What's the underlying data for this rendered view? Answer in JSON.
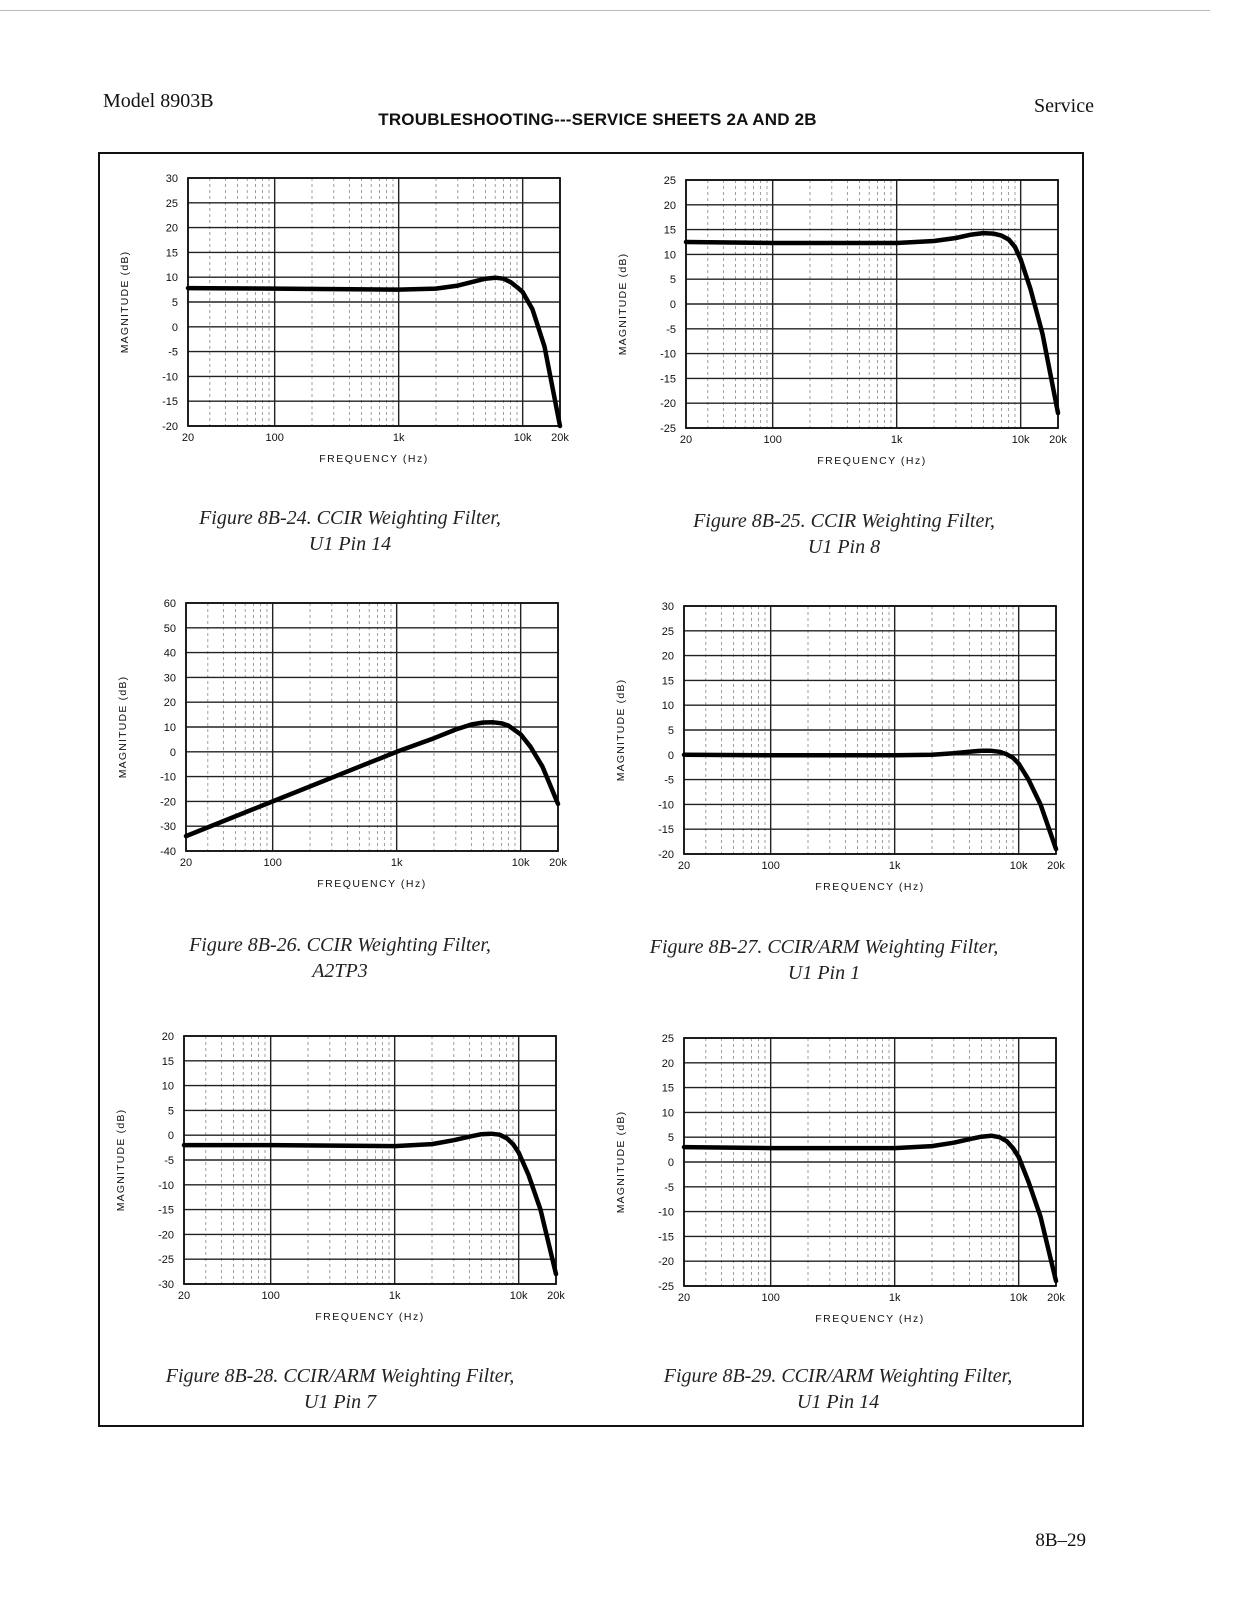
{
  "header": {
    "model": "Model 8903B",
    "title": "TROUBLESHOOTING---SERVICE SHEETS 2A AND 2B",
    "section": "Service"
  },
  "footer": {
    "page_number": "8B–29"
  },
  "captions": [
    {
      "line1": "Figure 8B-24. CCIR Weighting Filter,",
      "line2": "U1 Pin 14"
    },
    {
      "line1": "Figure 8B-25. CCIR Weighting Filter,",
      "line2": "U1 Pin 8"
    },
    {
      "line1": "Figure 8B-26. CCIR Weighting Filter,",
      "line2": "A2TP3"
    },
    {
      "line1": "Figure 8B-27. CCIR/ARM Weighting Filter,",
      "line2": "U1 Pin 1"
    },
    {
      "line1": "Figure 8B-28. CCIR/ARM Weighting Filter,",
      "line2": "U1 Pin 7"
    },
    {
      "line1": "Figure 8B-29. CCIR/ARM Weighting Filter,",
      "line2": "U1 Pin 14"
    }
  ],
  "chart_data": [
    {
      "type": "line",
      "title": "Figure 8B-24. CCIR Weighting Filter, U1 Pin 14",
      "xlabel": "FREQUENCY (Hz)",
      "ylabel": "MAGNITUDE (dB)",
      "xscale": "log",
      "xlim": [
        20,
        20000
      ],
      "x_ticks": [
        20,
        100,
        1000,
        10000,
        20000
      ],
      "x_tick_labels": [
        "20",
        "100",
        "1k",
        "10k",
        "20k"
      ],
      "ylim": [
        -20,
        30
      ],
      "y_ticks": [
        30,
        25,
        20,
        15,
        10,
        5,
        0,
        -5,
        -10,
        -15,
        -20
      ],
      "y_tick_labels": [
        "30",
        "25",
        "20",
        "15",
        "10",
        "5",
        "0",
        "-5",
        "-10",
        "-15",
        "-20"
      ],
      "series": [
        {
          "name": "response",
          "x": [
            20,
            100,
            1000,
            2000,
            3000,
            4000,
            5000,
            6000,
            7000,
            8000,
            9000,
            10000,
            12000,
            15000,
            20000
          ],
          "y": [
            7.8,
            7.7,
            7.5,
            7.7,
            8.3,
            9.1,
            9.7,
            9.9,
            9.7,
            9.0,
            8.0,
            7.0,
            3.5,
            -4.0,
            -20
          ]
        }
      ]
    },
    {
      "type": "line",
      "title": "Figure 8B-25. CCIR Weighting Filter, U1 Pin 8",
      "xlabel": "FREQUENCY (Hz)",
      "ylabel": "MAGNITUDE (dB)",
      "xscale": "log",
      "xlim": [
        20,
        20000
      ],
      "x_ticks": [
        20,
        100,
        1000,
        10000,
        20000
      ],
      "x_tick_labels": [
        "20",
        "100",
        "1k",
        "10k",
        "20k"
      ],
      "ylim": [
        -25,
        25
      ],
      "y_ticks": [
        25,
        20,
        15,
        10,
        5,
        0,
        -5,
        -10,
        -15,
        -20,
        -25
      ],
      "y_tick_labels": [
        "25",
        "20",
        "15",
        "10",
        "5",
        "0",
        "-5",
        "-10",
        "-15",
        "-20",
        "-25"
      ],
      "series": [
        {
          "name": "response",
          "x": [
            20,
            100,
            1000,
            2000,
            3000,
            4000,
            5000,
            6000,
            7000,
            8000,
            9000,
            10000,
            12000,
            15000,
            20000
          ],
          "y": [
            12.5,
            12.3,
            12.3,
            12.7,
            13.3,
            14.0,
            14.3,
            14.2,
            13.8,
            13.0,
            11.5,
            9.0,
            3.0,
            -6.0,
            -22
          ]
        }
      ]
    },
    {
      "type": "line",
      "title": "Figure 8B-26. CCIR Weighting Filter, A2TP3",
      "xlabel": "FREQUENCY (Hz)",
      "ylabel": "MAGNITUDE (dB)",
      "xscale": "log",
      "xlim": [
        20,
        20000
      ],
      "x_ticks": [
        20,
        100,
        1000,
        10000,
        20000
      ],
      "x_tick_labels": [
        "20",
        "100",
        "1k",
        "10k",
        "20k"
      ],
      "ylim": [
        -40,
        60
      ],
      "y_ticks": [
        60,
        50,
        40,
        30,
        20,
        10,
        0,
        -10,
        -20,
        -30,
        -40
      ],
      "y_tick_labels": [
        "60",
        "50",
        "40",
        "30",
        "20",
        "10",
        "0",
        "-10",
        "-20",
        "-30",
        "-40"
      ],
      "series": [
        {
          "name": "response",
          "x": [
            20,
            100,
            500,
            1000,
            2000,
            3000,
            4000,
            5000,
            6000,
            7000,
            8000,
            10000,
            12000,
            15000,
            20000
          ],
          "y": [
            -34,
            -20,
            -6,
            0,
            5.5,
            9.0,
            11.0,
            11.8,
            11.9,
            11.5,
            10.5,
            7.0,
            2.0,
            -6.0,
            -21
          ]
        }
      ]
    },
    {
      "type": "line",
      "title": "Figure 8B-27. CCIR/ARM Weighting Filter, U1 Pin 1",
      "xlabel": "FREQUENCY (Hz)",
      "ylabel": "MAGNITUDE (dB)",
      "xscale": "log",
      "xlim": [
        20,
        20000
      ],
      "x_ticks": [
        20,
        100,
        1000,
        10000,
        20000
      ],
      "x_tick_labels": [
        "20",
        "100",
        "1k",
        "10k",
        "20k"
      ],
      "ylim": [
        -20,
        30
      ],
      "y_ticks": [
        30,
        25,
        20,
        15,
        10,
        5,
        0,
        -5,
        -10,
        -15,
        -20
      ],
      "y_tick_labels": [
        "30",
        "25",
        "20",
        "15",
        "10",
        "5",
        "0",
        "-5",
        "-10",
        "-15",
        "-20"
      ],
      "series": [
        {
          "name": "response",
          "x": [
            20,
            100,
            1000,
            2000,
            3000,
            4000,
            5000,
            6000,
            7000,
            8000,
            9000,
            10000,
            12000,
            15000,
            20000
          ],
          "y": [
            0,
            -0.1,
            -0.1,
            0,
            0.3,
            0.6,
            0.8,
            0.8,
            0.6,
            0.1,
            -0.6,
            -1.8,
            -5.0,
            -10.0,
            -19
          ]
        }
      ]
    },
    {
      "type": "line",
      "title": "Figure 8B-28. CCIR/ARM Weighting Filter, U1 Pin 7",
      "xlabel": "FREQUENCY (Hz)",
      "ylabel": "MAGNITUDE (dB)",
      "xscale": "log",
      "xlim": [
        20,
        20000
      ],
      "x_ticks": [
        20,
        100,
        1000,
        10000,
        20000
      ],
      "x_tick_labels": [
        "20",
        "100",
        "1k",
        "10k",
        "20k"
      ],
      "ylim": [
        -30,
        20
      ],
      "y_ticks": [
        20,
        15,
        10,
        5,
        0,
        -5,
        -10,
        -15,
        -20,
        -25,
        -30
      ],
      "y_tick_labels": [
        "20",
        "15",
        "10",
        "5",
        "0",
        "-5",
        "-10",
        "-15",
        "-20",
        "-25",
        "-30"
      ],
      "series": [
        {
          "name": "response",
          "x": [
            20,
            100,
            1000,
            2000,
            3000,
            4000,
            5000,
            6000,
            7000,
            8000,
            9000,
            10000,
            12000,
            15000,
            20000
          ],
          "y": [
            -2,
            -2,
            -2.2,
            -1.8,
            -1.0,
            -0.3,
            0.2,
            0.3,
            0.1,
            -0.6,
            -1.8,
            -3.5,
            -8.0,
            -15.0,
            -28
          ]
        }
      ]
    },
    {
      "type": "line",
      "title": "Figure 8B-29. CCIR/ARM Weighting Filter, U1 Pin 14",
      "xlabel": "FREQUENCY (Hz)",
      "ylabel": "MAGNITUDE (dB)",
      "xscale": "log",
      "xlim": [
        20,
        20000
      ],
      "x_ticks": [
        20,
        100,
        1000,
        10000,
        20000
      ],
      "x_tick_labels": [
        "20",
        "100",
        "1k",
        "10k",
        "20k"
      ],
      "ylim": [
        -25,
        25
      ],
      "y_ticks": [
        25,
        20,
        15,
        10,
        5,
        0,
        -5,
        -10,
        -15,
        -20,
        -25
      ],
      "y_tick_labels": [
        "25",
        "20",
        "15",
        "10",
        "5",
        "0",
        "-5",
        "-10",
        "-15",
        "-20",
        "-25"
      ],
      "series": [
        {
          "name": "response",
          "x": [
            20,
            100,
            1000,
            2000,
            3000,
            4000,
            5000,
            6000,
            7000,
            8000,
            9000,
            10000,
            12000,
            15000,
            20000
          ],
          "y": [
            3.0,
            2.8,
            2.8,
            3.2,
            3.9,
            4.6,
            5.1,
            5.3,
            5.0,
            4.2,
            2.8,
            1.0,
            -4.0,
            -11.0,
            -24
          ]
        }
      ]
    }
  ]
}
